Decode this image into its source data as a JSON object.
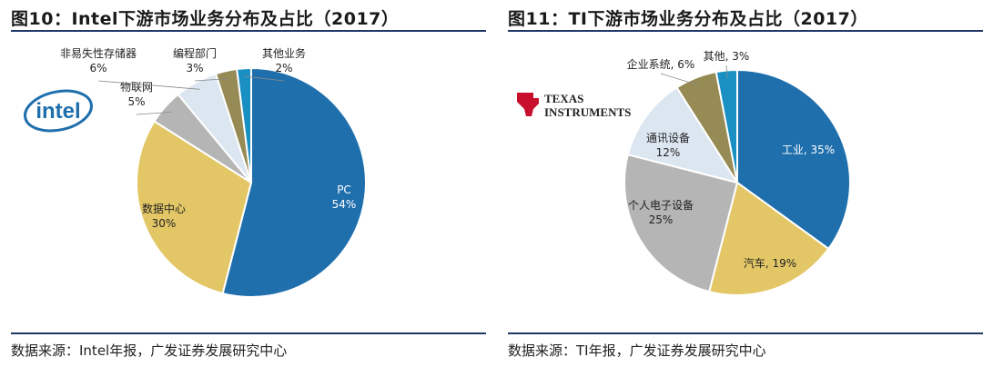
{
  "panels": [
    {
      "title": "图10：Intel下游市场业务分布及占比（2017）",
      "source": "数据来源：Intel年报，广发证券发展研究中心",
      "logo": "intel-logo",
      "logo_text": "intel"
    },
    {
      "title": "图11：TI下游市场业务分布及占比（2017）",
      "source": "数据来源：TI年报，广发证券发展研究中心",
      "logo": "texas-instruments-logo",
      "logo_text": [
        "TEXAS",
        "INSTRUMENTS"
      ]
    }
  ],
  "chart_data": [
    {
      "type": "pie",
      "title": "图10：Intel下游市场业务分布及占比（2017）",
      "slices": [
        {
          "label": "PC",
          "value": 54,
          "display": "54%",
          "color": "#1f6fad"
        },
        {
          "label": "数据中心",
          "value": 30,
          "display": "30%",
          "color": "#e3c766"
        },
        {
          "label": "物联网",
          "value": 5,
          "display": "5%",
          "color": "#b5b5b5"
        },
        {
          "label": "非易失性存储器",
          "value": 6,
          "display": "6%",
          "color": "#dce6f0"
        },
        {
          "label": "编程部门",
          "value": 3,
          "display": "3%",
          "color": "#968a55"
        },
        {
          "label": "其他业务",
          "value": 2,
          "display": "2%",
          "color": "#1a8fc2"
        }
      ]
    },
    {
      "type": "pie",
      "title": "图11：TI下游市场业务分布及占比（2017）",
      "slices": [
        {
          "label": "工业",
          "value": 35,
          "display": "35%",
          "color": "#1f6fad"
        },
        {
          "label": "汽车",
          "value": 19,
          "display": "19%",
          "color": "#e3c766"
        },
        {
          "label": "个人电子设备",
          "value": 25,
          "display": "25%",
          "color": "#b5b5b5"
        },
        {
          "label": "通讯设备",
          "value": 12,
          "display": "12%",
          "color": "#dce6f0"
        },
        {
          "label": "企业系统",
          "value": 6,
          "display": "6%",
          "color": "#968a55"
        },
        {
          "label": "其他",
          "value": 3,
          "display": "3%",
          "color": "#1a8fc2"
        }
      ]
    }
  ]
}
